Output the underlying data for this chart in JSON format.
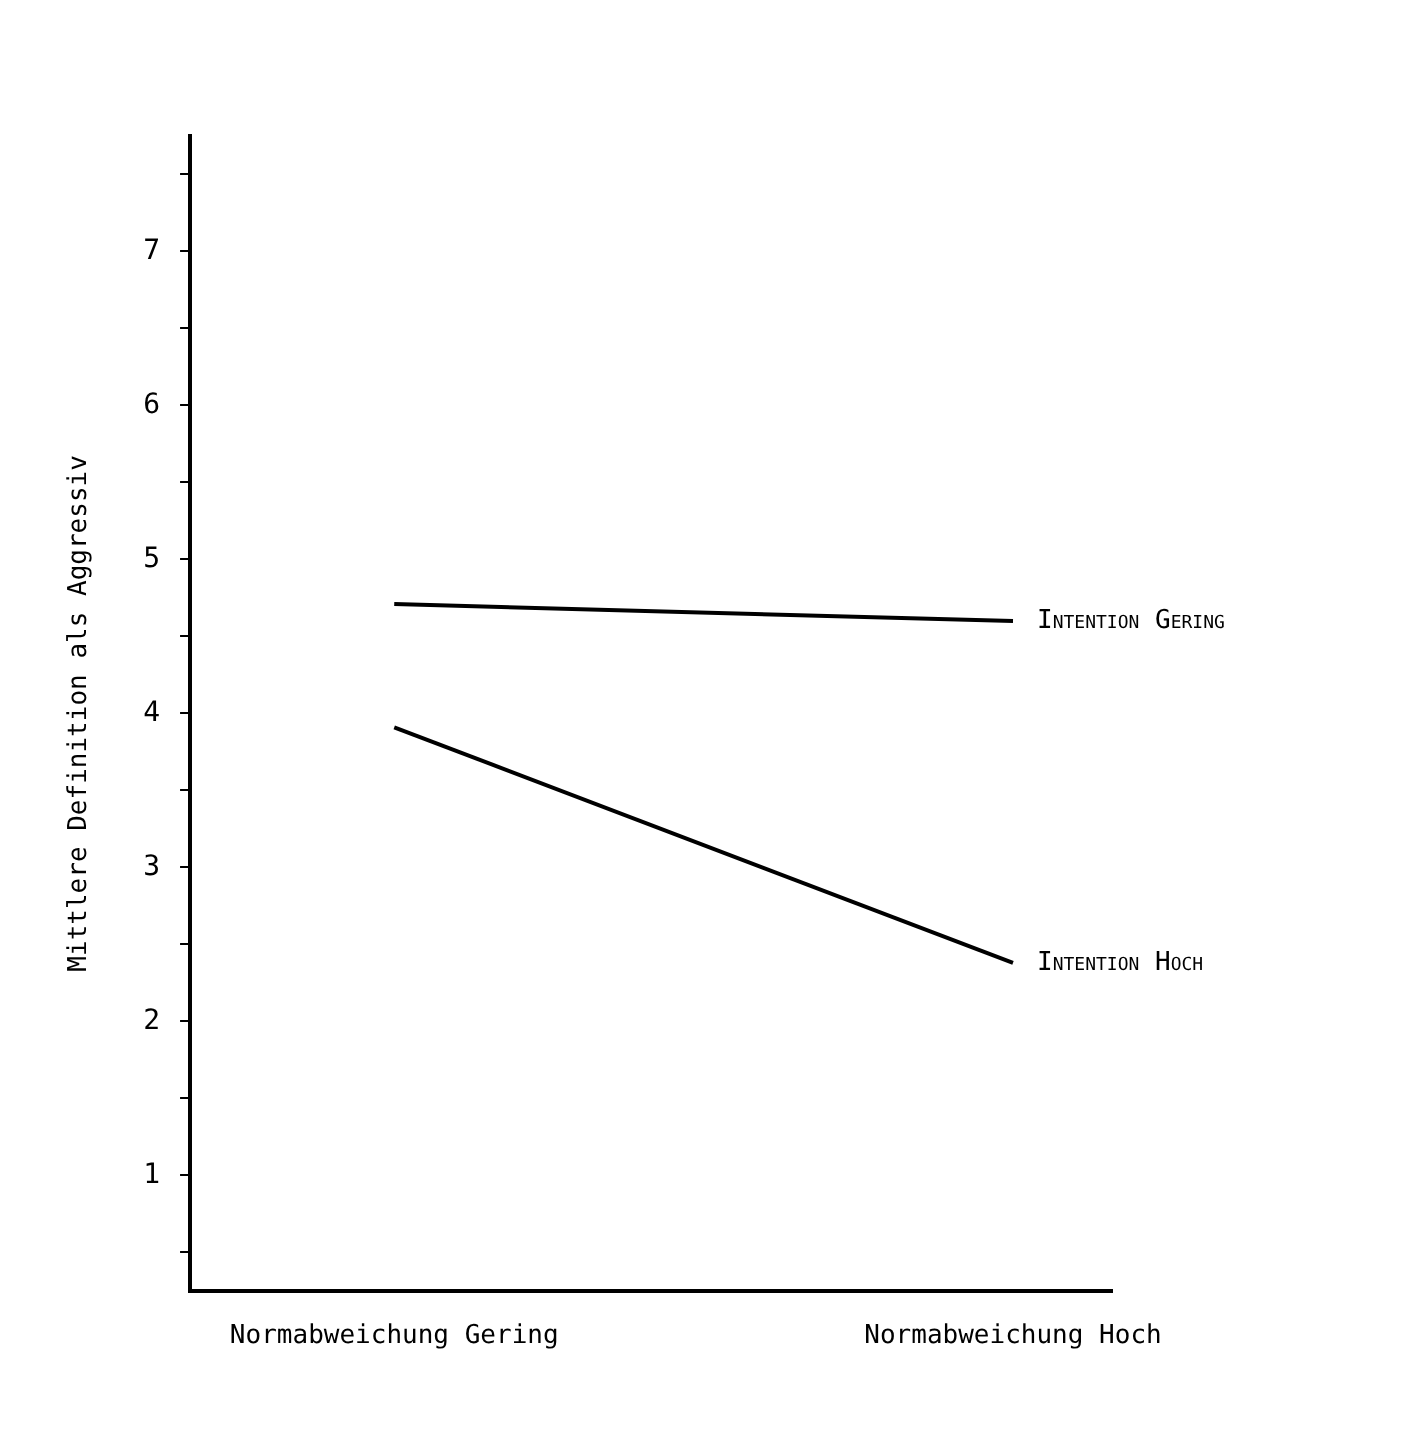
{
  "chart_data": {
    "type": "line",
    "ylabel": "Mittlere Definition als Aggressiv",
    "categories": [
      "Normabweichung Gering",
      "Normabweichung Hoch"
    ],
    "series": [
      {
        "name": "Intention Gering",
        "color": "#000000",
        "values": [
          4.71,
          4.6
        ]
      },
      {
        "name": "Intention Hoch",
        "color": "#000000",
        "values": [
          3.91,
          2.38
        ]
      }
    ],
    "ylim": [
      0.25,
      7.75
    ],
    "yticks": [
      {
        "value": 0.5,
        "label": null
      },
      1,
      {
        "value": 1.5,
        "label": null
      },
      2,
      {
        "value": 2.5,
        "label": null
      },
      3,
      {
        "value": 3.5,
        "label": null
      },
      4,
      {
        "value": 4.5,
        "label": null
      },
      5,
      {
        "value": 5.5,
        "label": null
      },
      6,
      {
        "value": 6.5,
        "label": null
      },
      7,
      {
        "value": 7.5,
        "label": null
      }
    ],
    "grid": false,
    "legend": false,
    "marker": "none",
    "line_style": "solid"
  }
}
